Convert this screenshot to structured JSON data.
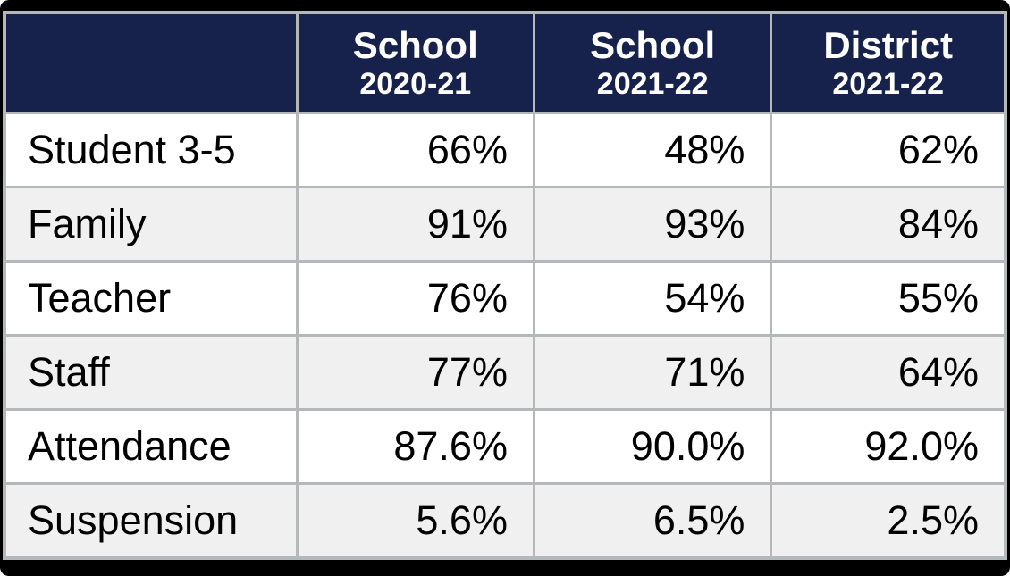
{
  "chart_data": {
    "type": "table",
    "title": "",
    "columns": [
      "",
      "School 2020-21",
      "School 2021-22",
      "District 2021-22"
    ],
    "categories": [
      "Student 3-5",
      "Family",
      "Teacher",
      "Staff",
      "Attendance",
      "Suspension"
    ],
    "series": [
      {
        "name": "School 2020-21",
        "values": [
          "66%",
          "91%",
          "76%",
          "77%",
          "87.6%",
          "5.6%"
        ]
      },
      {
        "name": "School 2021-22",
        "values": [
          "48%",
          "93%",
          "54%",
          "71%",
          "90.0%",
          "6.5%"
        ]
      },
      {
        "name": "District 2021-22",
        "values": [
          "62%",
          "84%",
          "55%",
          "64%",
          "92.0%",
          "2.5%"
        ]
      }
    ]
  },
  "table": {
    "header": {
      "col0": "",
      "col1": {
        "line1": "School",
        "line2": "2020-21"
      },
      "col2": {
        "line1": "School",
        "line2": "2021-22"
      },
      "col3": {
        "line1": "District",
        "line2": "2021-22"
      }
    },
    "rows": [
      {
        "label": "Student 3-5",
        "values": [
          "66%",
          "48%",
          "62%"
        ]
      },
      {
        "label": "Family",
        "values": [
          "91%",
          "93%",
          "84%"
        ]
      },
      {
        "label": "Teacher",
        "values": [
          "76%",
          "54%",
          "55%"
        ]
      },
      {
        "label": "Staff",
        "values": [
          "77%",
          "71%",
          "64%"
        ]
      },
      {
        "label": "Attendance",
        "values": [
          "87.6%",
          "90.0%",
          "92.0%"
        ]
      },
      {
        "label": "Suspension",
        "values": [
          "5.6%",
          "6.5%",
          "2.5%"
        ]
      }
    ]
  },
  "colors": {
    "header_bg": "#16224c",
    "header_text": "#ffffff",
    "row_bg": "#ffffff",
    "row_alt_bg": "#f0f0f0",
    "border": "#b5b8b8",
    "frame": "#000000",
    "body_text": "#000000"
  }
}
